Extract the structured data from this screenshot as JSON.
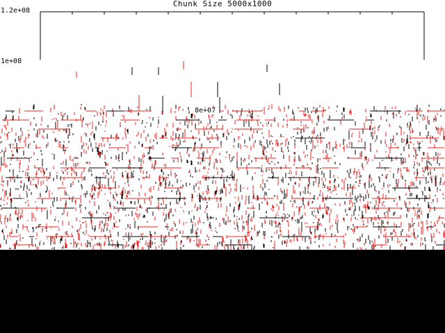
{
  "colors": {
    "background": "#ffffff",
    "frame": "#000000",
    "series_black": "#000000",
    "series_red": "#e8231f",
    "band": "#000000"
  },
  "chart_data": {
    "type": "scatter",
    "title": "Chunk Size 5000x1000",
    "yticks": [
      "1.2e+08",
      "1e+08"
    ],
    "inline_labels": [
      "8e+07"
    ],
    "grid": false,
    "legend": "none",
    "series": [
      {
        "color": "red"
      },
      {
        "color": "black"
      }
    ]
  }
}
